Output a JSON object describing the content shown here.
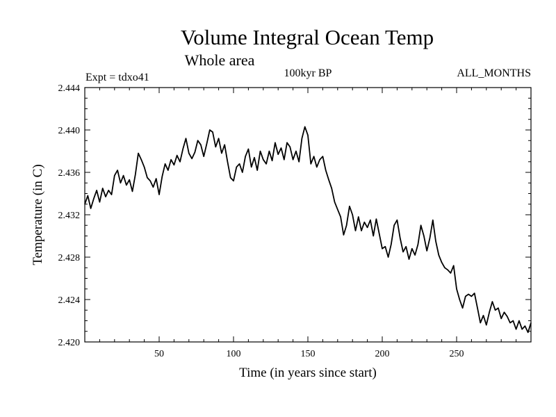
{
  "chart_data": {
    "type": "line",
    "title": "Volume Integral Ocean Temp",
    "subtitle": "Whole area",
    "experiment": "Expt = tdxo41",
    "period": "100kyr BP",
    "months": "ALL_MONTHS",
    "xlabel": "Time (in years since start)",
    "ylabel": "Temperature (in C)",
    "xlim": [
      0,
      300
    ],
    "ylim": [
      2.42,
      2.444
    ],
    "x_ticks": [
      50,
      100,
      150,
      200,
      250
    ],
    "y_ticks": [
      "2.420",
      "2.424",
      "2.428",
      "2.432",
      "2.436",
      "2.440",
      "2.444"
    ],
    "grid": false,
    "series": [
      {
        "name": "Volume integral ocean temperature",
        "color": "#000000",
        "x": [
          0,
          2,
          4,
          6,
          8,
          10,
          12,
          14,
          16,
          18,
          20,
          22,
          24,
          26,
          28,
          30,
          32,
          34,
          36,
          38,
          40,
          42,
          44,
          46,
          48,
          50,
          52,
          54,
          56,
          58,
          60,
          62,
          64,
          66,
          68,
          70,
          72,
          74,
          76,
          78,
          80,
          82,
          84,
          86,
          88,
          90,
          92,
          94,
          96,
          98,
          100,
          102,
          104,
          106,
          108,
          110,
          112,
          114,
          116,
          118,
          120,
          122,
          124,
          126,
          128,
          130,
          132,
          134,
          136,
          138,
          140,
          142,
          144,
          146,
          148,
          150,
          152,
          154,
          156,
          158,
          160,
          162,
          164,
          166,
          168,
          170,
          172,
          174,
          176,
          178,
          180,
          182,
          184,
          186,
          188,
          190,
          192,
          194,
          196,
          198,
          200,
          202,
          204,
          206,
          208,
          210,
          212,
          214,
          216,
          218,
          220,
          222,
          224,
          226,
          228,
          230,
          232,
          234,
          236,
          238,
          240,
          242,
          244,
          246,
          248,
          250,
          252,
          254,
          256,
          258,
          260,
          262,
          264,
          266,
          268,
          270,
          272,
          274,
          276,
          278,
          280,
          282,
          284,
          286,
          288,
          290,
          292,
          294,
          296,
          298,
          300
        ],
        "values": [
          2.433,
          2.4338,
          2.4326,
          2.4335,
          2.4343,
          2.4332,
          2.4345,
          2.4337,
          2.4343,
          2.4339,
          2.4357,
          2.4362,
          2.435,
          2.4357,
          2.4348,
          2.4353,
          2.4342,
          2.4358,
          2.4378,
          2.4372,
          2.4365,
          2.4355,
          2.4352,
          2.4346,
          2.4354,
          2.4339,
          2.4356,
          2.4368,
          2.4362,
          2.4372,
          2.4367,
          2.4376,
          2.437,
          2.4382,
          2.4392,
          2.4378,
          2.4373,
          2.4379,
          2.439,
          2.4386,
          2.4375,
          2.4387,
          2.44,
          2.4398,
          2.4384,
          2.4392,
          2.4378,
          2.4386,
          2.437,
          2.4355,
          2.4352,
          2.4365,
          2.4368,
          2.436,
          2.4375,
          2.4382,
          2.4365,
          2.4374,
          2.4362,
          2.438,
          2.4372,
          2.4368,
          2.438,
          2.4371,
          2.4388,
          2.4377,
          2.4383,
          2.4372,
          2.4388,
          2.4384,
          2.4372,
          2.438,
          2.437,
          2.4392,
          2.4403,
          2.4395,
          2.4368,
          2.4375,
          2.4365,
          2.4372,
          2.4375,
          2.4362,
          2.4353,
          2.4345,
          2.4332,
          2.4325,
          2.4318,
          2.4301,
          2.431,
          2.4328,
          2.432,
          2.4305,
          2.4318,
          2.4305,
          2.4313,
          2.4308,
          2.4315,
          2.43,
          2.4316,
          2.4302,
          2.4288,
          2.429,
          2.428,
          2.4292,
          2.431,
          2.4315,
          2.4298,
          2.4285,
          2.429,
          2.4278,
          2.4288,
          2.4282,
          2.4292,
          2.431,
          2.43,
          2.4286,
          2.4298,
          2.4315,
          2.4295,
          2.4282,
          2.4275,
          2.427,
          2.4268,
          2.4265,
          2.4272,
          2.425,
          2.424,
          2.4232,
          2.4243,
          2.4245,
          2.4243,
          2.4246,
          2.4232,
          2.4218,
          2.4225,
          2.4216,
          2.4228,
          2.4238,
          2.423,
          2.4232,
          2.4222,
          2.4228,
          2.4224,
          2.4218,
          2.422,
          2.4212,
          2.422,
          2.4212,
          2.4215,
          2.4209,
          2.4218
        ]
      }
    ]
  }
}
